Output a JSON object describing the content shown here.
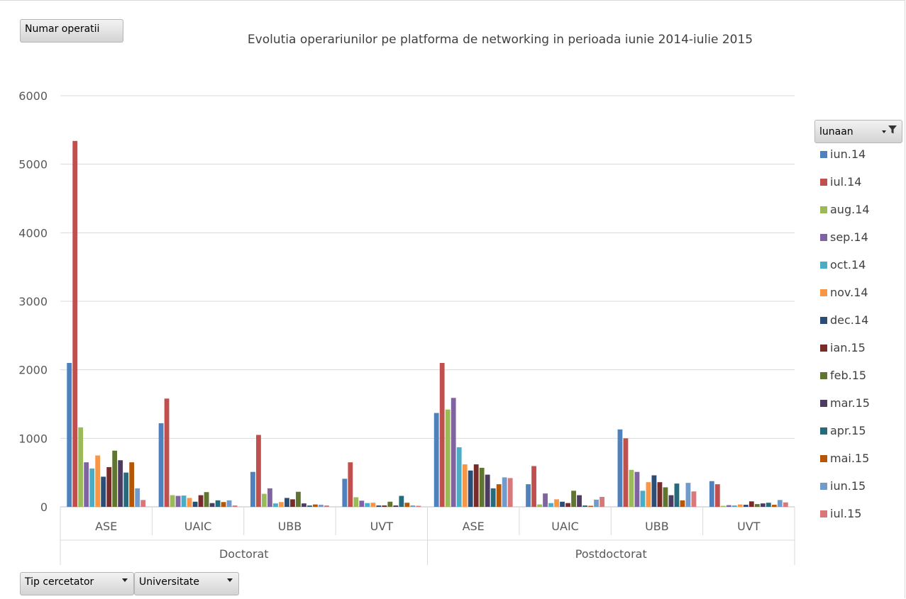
{
  "filters": {
    "value_field": "Numar operatii",
    "row_field_1": "Tip cercetator",
    "row_field_2": "Universitate",
    "legend_field": "lunaan"
  },
  "chart_data": {
    "type": "bar",
    "title": "Evolutia operariunilor pe platforma de networking in perioada iunie 2014-iulie 2015",
    "xlabel": "",
    "ylabel": "",
    "ylim": [
      0,
      6000
    ],
    "yticks": [
      0,
      1000,
      2000,
      3000,
      4000,
      5000,
      6000
    ],
    "grid": true,
    "legend_position": "right",
    "groups": [
      {
        "name": "Doctorat",
        "categories": [
          "ASE",
          "UAIC",
          "UBB",
          "UVT"
        ]
      },
      {
        "name": "Postdoctorat",
        "categories": [
          "ASE",
          "UAIC",
          "UBB",
          "UVT"
        ]
      }
    ],
    "categories": [
      "ASE",
      "UAIC",
      "UBB",
      "UVT",
      "ASE",
      "UAIC",
      "UBB",
      "UVT"
    ],
    "series": [
      {
        "name": "iun.14",
        "color": "#4F81BD",
        "values": [
          2100,
          1220,
          510,
          410,
          1370,
          330,
          1130,
          375
        ]
      },
      {
        "name": "iul.14",
        "color": "#C0504D",
        "values": [
          5340,
          1580,
          1050,
          650,
          2100,
          595,
          1000,
          330
        ]
      },
      {
        "name": "aug.14",
        "color": "#9BBB59",
        "values": [
          1160,
          170,
          190,
          140,
          1420,
          35,
          540,
          15
        ]
      },
      {
        "name": "sep.14",
        "color": "#8064A2",
        "values": [
          650,
          160,
          270,
          90,
          1590,
          195,
          510,
          25
        ]
      },
      {
        "name": "oct.14",
        "color": "#4BACC6",
        "values": [
          560,
          165,
          50,
          55,
          870,
          55,
          235,
          20
        ]
      },
      {
        "name": "nov.14",
        "color": "#F79646",
        "values": [
          750,
          130,
          70,
          60,
          620,
          110,
          360,
          35
        ]
      },
      {
        "name": "dec.14",
        "color": "#2C4D75",
        "values": [
          440,
          75,
          130,
          20,
          530,
          75,
          460,
          30
        ]
      },
      {
        "name": "ian.15",
        "color": "#772C2A",
        "values": [
          580,
          170,
          110,
          20,
          620,
          55,
          360,
          80
        ]
      },
      {
        "name": "feb.15",
        "color": "#5F7530",
        "values": [
          820,
          215,
          220,
          75,
          570,
          235,
          285,
          40
        ]
      },
      {
        "name": "mar.15",
        "color": "#4D3B62",
        "values": [
          680,
          55,
          50,
          20,
          470,
          170,
          170,
          50
        ]
      },
      {
        "name": "apr.15",
        "color": "#276A7C",
        "values": [
          500,
          95,
          20,
          160,
          270,
          20,
          340,
          60
        ]
      },
      {
        "name": "mai.15",
        "color": "#B65708",
        "values": [
          650,
          70,
          35,
          60,
          330,
          15,
          95,
          30
        ]
      },
      {
        "name": "iun.15",
        "color": "#729ACA",
        "values": [
          270,
          95,
          30,
          20,
          430,
          105,
          350,
          100
        ]
      },
      {
        "name": "iul.15",
        "color": "#D9787A",
        "values": [
          100,
          20,
          20,
          15,
          420,
          145,
          225,
          65
        ]
      }
    ]
  }
}
